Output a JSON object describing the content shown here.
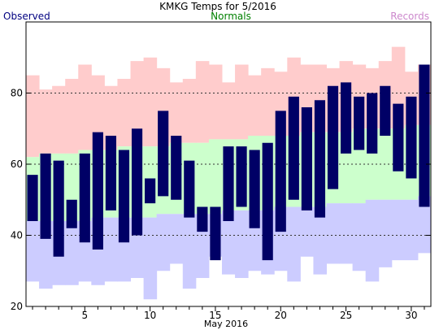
{
  "chart_data": {
    "type": "bar",
    "title": "KMKG Temps for 5/2016",
    "xlabel": "May 2016",
    "ylabel": "",
    "legend": {
      "observed": "Observed",
      "normals": "Normals",
      "records": "Records"
    },
    "colors": {
      "observed": "#000066",
      "normals_fill": "#ccffcc",
      "records_high_fill": "#ffcccc",
      "records_low_fill": "#ccccff",
      "observed_label": "#000080",
      "normals_label": "#008000",
      "records_label": "#cc88cc",
      "grid": "#333333"
    },
    "ylim": [
      20,
      100
    ],
    "y_ticks": [
      20,
      40,
      60,
      80
    ],
    "y_gridlines": [
      40,
      60,
      80
    ],
    "xlim": [
      0.5,
      31.5
    ],
    "x_ticks": [
      5,
      10,
      15,
      20,
      25,
      30
    ],
    "x": [
      1,
      2,
      3,
      4,
      5,
      6,
      7,
      8,
      9,
      10,
      11,
      12,
      13,
      14,
      15,
      16,
      17,
      18,
      19,
      20,
      21,
      22,
      23,
      24,
      25,
      26,
      27,
      28,
      29,
      30,
      31
    ],
    "series": [
      {
        "name": "Records",
        "kind": "range",
        "high": [
          85,
          81,
          82,
          84,
          88,
          85,
          82,
          84,
          89,
          90,
          87,
          83,
          84,
          89,
          88,
          83,
          88,
          85,
          87,
          86,
          90,
          88,
          88,
          87,
          89,
          88,
          87,
          89,
          93,
          86,
          88
        ],
        "low": [
          27,
          25,
          26,
          26,
          27,
          26,
          27,
          27,
          28,
          22,
          30,
          32,
          25,
          28,
          34,
          29,
          28,
          30,
          29,
          30,
          27,
          34,
          29,
          32,
          32,
          30,
          27,
          31,
          33,
          33,
          35
        ]
      },
      {
        "name": "Normals",
        "kind": "range",
        "high": [
          62,
          63,
          63,
          63,
          64,
          64,
          64,
          65,
          65,
          65,
          65,
          66,
          66,
          66,
          67,
          67,
          67,
          68,
          68,
          68,
          68,
          69,
          69,
          69,
          69,
          70,
          70,
          70,
          70,
          71,
          71
        ],
        "low": [
          44,
          44,
          44,
          44,
          44,
          45,
          45,
          45,
          45,
          45,
          46,
          46,
          46,
          46,
          46,
          47,
          47,
          47,
          47,
          48,
          48,
          48,
          48,
          49,
          49,
          49,
          50,
          50,
          50,
          50,
          51
        ]
      },
      {
        "name": "Observed",
        "kind": "range",
        "high": [
          57,
          63,
          61,
          50,
          63,
          69,
          68,
          64,
          70,
          56,
          75,
          68,
          61,
          48,
          48,
          65,
          65,
          64,
          66,
          75,
          79,
          76,
          78,
          82,
          83,
          79,
          80,
          82,
          77,
          79,
          88
        ],
        "low": [
          44,
          39,
          34,
          42,
          38,
          36,
          47,
          38,
          40,
          49,
          51,
          50,
          45,
          41,
          33,
          44,
          48,
          42,
          33,
          41,
          50,
          47,
          45,
          53,
          63,
          64,
          63,
          68,
          58,
          56,
          48
        ]
      }
    ]
  }
}
